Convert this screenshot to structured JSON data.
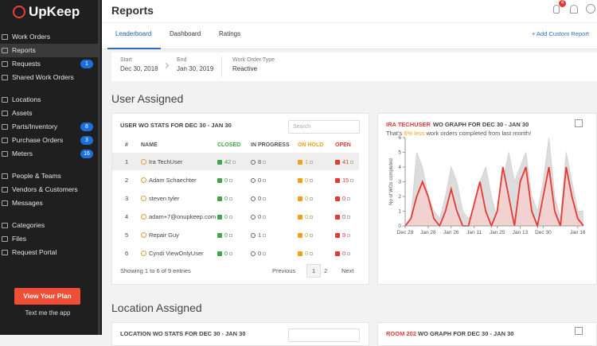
{
  "sidebar": {
    "logo": "UpKeep",
    "active": "1",
    "groups": [
      [
        {
          "label": "Work Orders"
        },
        {
          "label": "Reports"
        },
        {
          "label": "Requests",
          "badge": 1
        },
        {
          "label": "Shared Work Orders"
        }
      ],
      [
        {
          "label": "Locations"
        },
        {
          "label": "Assets"
        },
        {
          "label": "Parts/Inventory",
          "badge": 8
        },
        {
          "label": "Purchase Orders",
          "badge": 3
        },
        {
          "label": "Meters",
          "badge": 16
        }
      ],
      [
        {
          "label": "People & Teams"
        },
        {
          "label": "Vendors & Customers"
        },
        {
          "label": "Messages"
        }
      ],
      [
        {
          "label": "Categories"
        },
        {
          "label": "Files"
        },
        {
          "label": "Request Portal"
        }
      ]
    ],
    "plan_button": "View Your Plan",
    "text_app": "Text me the app"
  },
  "header": {
    "title": "Reports",
    "notification_count": 4
  },
  "tabs": [
    "Leaderboard",
    "Dashboard",
    "Ratings"
  ],
  "add_report": "+ Add Custom Report",
  "filters": [
    {
      "label": "Start",
      "value": "Dec 30, 2018"
    },
    {
      "label": "End",
      "value": "Jan 30, 2019"
    },
    {
      "label": "Work Order Type",
      "value": "Reactive"
    }
  ],
  "user_section": {
    "title": "User Assigned",
    "table": {
      "title": "USER WO STATS FOR DEC 30 - JAN 30",
      "search_placeholder": "Search",
      "columns": [
        "#",
        "NAME",
        "CLOSED",
        "IN PROGRESS",
        "ON HOLD",
        "OPEN"
      ],
      "rows": [
        [
          1,
          "Ira TechUser",
          42,
          8,
          1,
          41
        ],
        [
          2,
          "Adam Schaechter",
          0,
          0,
          0,
          15
        ],
        [
          3,
          "steven tyler",
          0,
          0,
          0,
          0
        ],
        [
          4,
          "adam+7@onupkeep.com",
          0,
          0,
          0,
          0
        ],
        [
          5,
          "Repair Guy",
          0,
          1,
          0,
          9
        ],
        [
          6,
          "Cyndi ViewOnlyUser",
          0,
          0,
          0,
          0
        ]
      ],
      "footer": "Showing 1 to 6 of 9 entries",
      "pagination": [
        "Previous",
        "1",
        "2",
        "Next"
      ]
    },
    "graph": {
      "type": "area",
      "title_highlight": "IRA TECHUSER",
      "title": "WO GRAPH FOR DEC 30 - JAN 30",
      "subtitle_pre": "That's",
      "subtitle_highlight": "6% less",
      "subtitle_post": "work orders completed from last month!",
      "y_label": "No of WOs completed",
      "ylim": [
        0,
        6
      ],
      "yticks": [
        0,
        1,
        2,
        3,
        4,
        5,
        6
      ],
      "xlim": [
        0,
        31
      ],
      "xticks": [
        {
          "value": 0,
          "label": "Dec 29"
        },
        {
          "value": 4,
          "label": "Jan 28"
        },
        {
          "value": 8,
          "label": "Jan 26"
        },
        {
          "value": 12,
          "label": "Jan 11"
        },
        {
          "value": 16,
          "label": "Jan 25"
        },
        {
          "value": 20,
          "label": "Jan 13"
        },
        {
          "value": 24,
          "label": "Dec 30"
        },
        {
          "value": 30,
          "label": "Jan 16"
        }
      ],
      "series": [
        {
          "color": "#d4d4d4",
          "fill": "#dcdcdc",
          "values": [
            0,
            0.5,
            5,
            4,
            2,
            1,
            0.5,
            2,
            4,
            3,
            1,
            0.5,
            1,
            3,
            4,
            2,
            0.5,
            3,
            5,
            3,
            4,
            5,
            2,
            1,
            3,
            6,
            2,
            0.5,
            5,
            3,
            1,
            1
          ]
        },
        {
          "color": "#e53935",
          "fill": "#f7cfcd",
          "values": [
            0,
            0.5,
            2,
            3,
            2,
            0.5,
            0,
            1,
            2.5,
            1,
            0,
            0,
            1.5,
            3,
            1,
            0,
            1,
            4,
            2,
            0,
            3,
            4,
            1,
            0,
            2,
            4,
            1,
            0,
            4,
            2,
            0.5,
            0
          ]
        }
      ]
    }
  },
  "location_section": {
    "title": "Location Assigned",
    "table_title": "LOCATION WO STATS FOR DEC 30 - JAN 30",
    "graph_title_highlight": "ROOM 202",
    "graph_title": "WO GRAPH FOR DEC 30 - JAN 30"
  }
}
